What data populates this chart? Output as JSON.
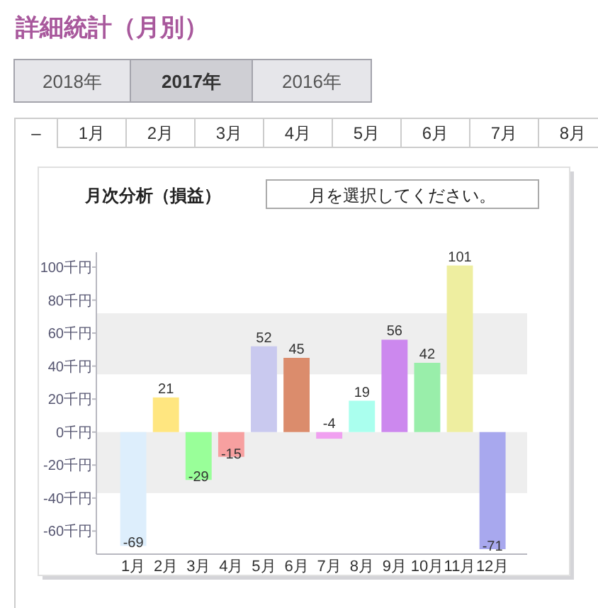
{
  "chart_data": {
    "type": "bar",
    "title": "月次分析（損益）",
    "categories": [
      "1月",
      "2月",
      "3月",
      "4月",
      "5月",
      "6月",
      "7月",
      "8月",
      "9月",
      "10月",
      "11月",
      "12月"
    ],
    "values": [
      -69,
      21,
      -29,
      -15,
      52,
      45,
      -4,
      19,
      56,
      42,
      101,
      -71
    ],
    "colors": [
      "#ddeefc",
      "#ffe680",
      "#99ff99",
      "#f7a0a0",
      "#c9c9ef",
      "#db8c6c",
      "#f0a0f0",
      "#aaffee",
      "#cc88ee",
      "#99eeaa",
      "#eeeea0",
      "#a8a8ee"
    ],
    "ylim": [
      -74,
      109
    ],
    "yticks": [
      {
        "value": -60,
        "label": "-60千円"
      },
      {
        "value": -40,
        "label": "-40千円"
      },
      {
        "value": -20,
        "label": "-20千円"
      },
      {
        "value": 0,
        "label": "0千円"
      },
      {
        "value": 20,
        "label": "20千円"
      },
      {
        "value": 40,
        "label": "40千円"
      },
      {
        "value": 60,
        "label": "60千円"
      },
      {
        "value": 80,
        "label": "80千円"
      },
      {
        "value": 100,
        "label": "100千円"
      }
    ],
    "bands": [
      {
        "axis": "y",
        "from": -37,
        "to": 0,
        "color": "#eeeeee"
      },
      {
        "axis": "y",
        "from": 35,
        "to": 72,
        "color": "#eeeeee"
      }
    ],
    "data_labels": true,
    "annotations": [
      "詳細統計（月別）",
      "2018年",
      "2017年",
      "2016年",
      "–",
      "1月",
      "2月",
      "3月",
      "4月",
      "5月",
      "6月",
      "7月",
      "8月",
      "月を選択してください。"
    ]
  }
}
